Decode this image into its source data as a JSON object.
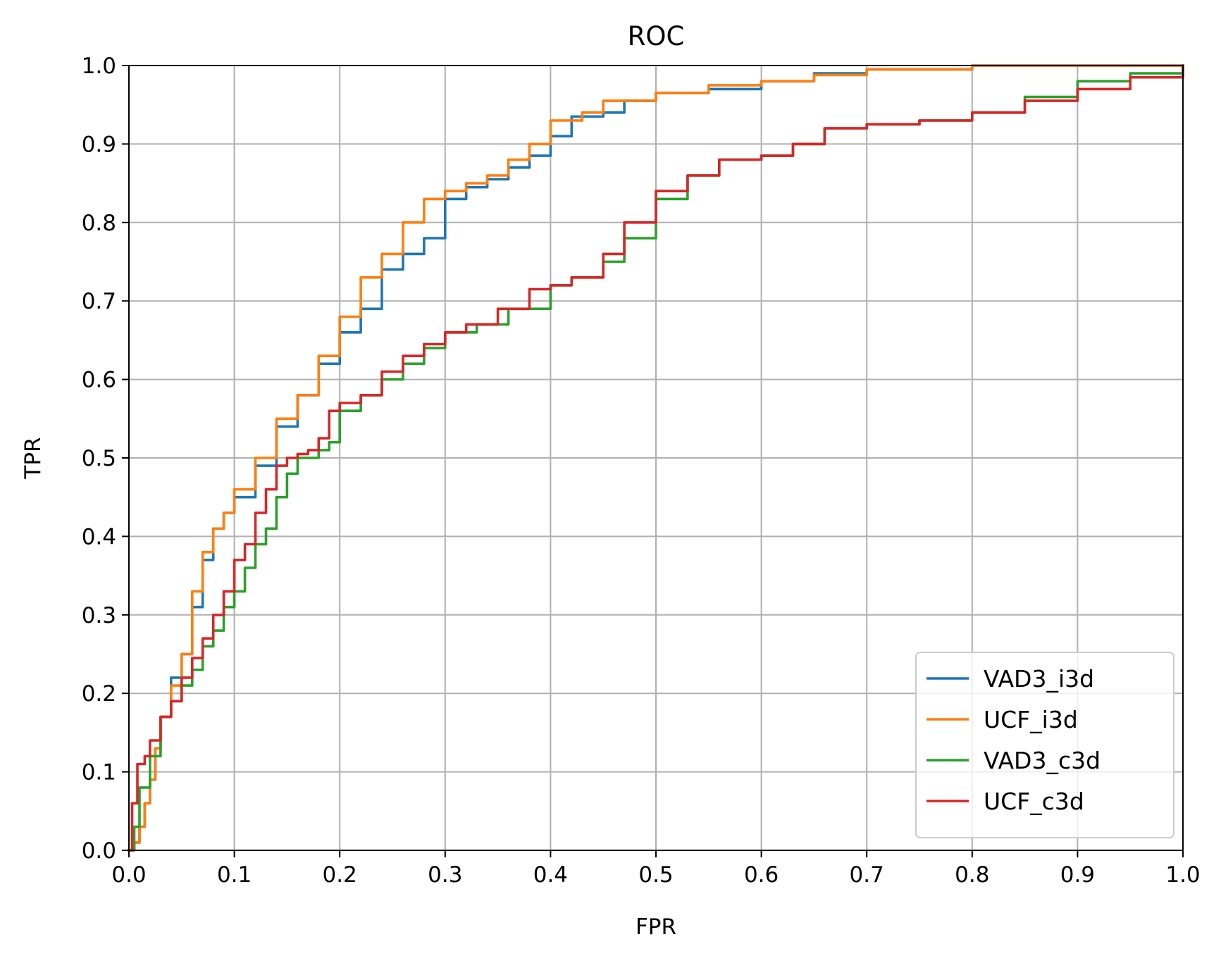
{
  "chart_data": {
    "type": "line",
    "title": "ROC",
    "xlabel": "FPR",
    "ylabel": "TPR",
    "xlim": [
      0,
      1
    ],
    "ylim": [
      0,
      1
    ],
    "grid": true,
    "legend_position": "lower-right",
    "xticks": [
      "0.0",
      "0.1",
      "0.2",
      "0.3",
      "0.4",
      "0.5",
      "0.6",
      "0.7",
      "0.8",
      "0.9",
      "1.0"
    ],
    "yticks": [
      "0.0",
      "0.1",
      "0.2",
      "0.3",
      "0.4",
      "0.5",
      "0.6",
      "0.7",
      "0.8",
      "0.9",
      "1.0"
    ],
    "series": [
      {
        "name": "VAD3_i3d",
        "color": "#1f77b4",
        "x": [
          0,
          0.005,
          0.01,
          0.015,
          0.02,
          0.025,
          0.03,
          0.04,
          0.05,
          0.06,
          0.07,
          0.08,
          0.09,
          0.1,
          0.12,
          0.14,
          0.16,
          0.18,
          0.2,
          0.22,
          0.24,
          0.26,
          0.28,
          0.3,
          0.32,
          0.34,
          0.36,
          0.38,
          0.4,
          0.42,
          0.45,
          0.47,
          0.5,
          0.55,
          0.6,
          0.65,
          0.7,
          0.8,
          0.9,
          1.0
        ],
        "y": [
          0,
          0.01,
          0.03,
          0.06,
          0.09,
          0.13,
          0.17,
          0.22,
          0.25,
          0.31,
          0.37,
          0.41,
          0.43,
          0.45,
          0.49,
          0.54,
          0.58,
          0.62,
          0.66,
          0.69,
          0.74,
          0.76,
          0.78,
          0.83,
          0.845,
          0.855,
          0.87,
          0.885,
          0.91,
          0.935,
          0.94,
          0.955,
          0.965,
          0.97,
          0.98,
          0.99,
          0.995,
          1.0,
          1.0,
          1.0
        ]
      },
      {
        "name": "UCF_i3d",
        "color": "#ff7f0e",
        "x": [
          0,
          0.005,
          0.01,
          0.015,
          0.02,
          0.025,
          0.03,
          0.04,
          0.05,
          0.06,
          0.07,
          0.08,
          0.09,
          0.1,
          0.12,
          0.14,
          0.16,
          0.18,
          0.2,
          0.22,
          0.24,
          0.26,
          0.28,
          0.3,
          0.32,
          0.34,
          0.36,
          0.38,
          0.4,
          0.43,
          0.45,
          0.5,
          0.55,
          0.6,
          0.65,
          0.7,
          0.8,
          0.9,
          1.0
        ],
        "y": [
          0,
          0.01,
          0.03,
          0.06,
          0.09,
          0.13,
          0.17,
          0.21,
          0.25,
          0.33,
          0.38,
          0.41,
          0.43,
          0.46,
          0.5,
          0.55,
          0.58,
          0.63,
          0.68,
          0.73,
          0.76,
          0.8,
          0.83,
          0.84,
          0.85,
          0.86,
          0.88,
          0.9,
          0.93,
          0.94,
          0.955,
          0.965,
          0.975,
          0.98,
          0.988,
          0.995,
          1.0,
          1.0,
          1.0
        ]
      },
      {
        "name": "VAD3_c3d",
        "color": "#2ca02c",
        "x": [
          0,
          0.005,
          0.01,
          0.02,
          0.03,
          0.04,
          0.05,
          0.06,
          0.07,
          0.08,
          0.09,
          0.1,
          0.11,
          0.12,
          0.13,
          0.14,
          0.15,
          0.16,
          0.18,
          0.19,
          0.2,
          0.22,
          0.24,
          0.26,
          0.28,
          0.3,
          0.33,
          0.36,
          0.4,
          0.42,
          0.45,
          0.47,
          0.5,
          0.53,
          0.56,
          0.6,
          0.63,
          0.66,
          0.7,
          0.75,
          0.8,
          0.85,
          0.9,
          0.95,
          1.0
        ],
        "y": [
          0,
          0.03,
          0.08,
          0.12,
          0.17,
          0.19,
          0.21,
          0.23,
          0.26,
          0.28,
          0.31,
          0.33,
          0.36,
          0.39,
          0.41,
          0.45,
          0.48,
          0.5,
          0.51,
          0.52,
          0.56,
          0.58,
          0.6,
          0.62,
          0.64,
          0.66,
          0.67,
          0.69,
          0.72,
          0.73,
          0.75,
          0.78,
          0.83,
          0.86,
          0.88,
          0.885,
          0.9,
          0.92,
          0.925,
          0.93,
          0.94,
          0.96,
          0.98,
          0.99,
          1.0
        ]
      },
      {
        "name": "UCF_c3d",
        "color": "#d62728",
        "x": [
          0,
          0.003,
          0.008,
          0.015,
          0.02,
          0.03,
          0.04,
          0.05,
          0.06,
          0.07,
          0.08,
          0.09,
          0.1,
          0.11,
          0.12,
          0.13,
          0.14,
          0.15,
          0.16,
          0.17,
          0.18,
          0.19,
          0.2,
          0.22,
          0.24,
          0.26,
          0.28,
          0.3,
          0.32,
          0.35,
          0.38,
          0.4,
          0.42,
          0.45,
          0.47,
          0.5,
          0.53,
          0.56,
          0.6,
          0.63,
          0.66,
          0.7,
          0.75,
          0.8,
          0.85,
          0.9,
          0.95,
          1.0
        ],
        "y": [
          0,
          0.06,
          0.11,
          0.12,
          0.14,
          0.17,
          0.19,
          0.22,
          0.245,
          0.27,
          0.3,
          0.33,
          0.37,
          0.39,
          0.43,
          0.46,
          0.49,
          0.5,
          0.505,
          0.51,
          0.525,
          0.56,
          0.57,
          0.58,
          0.61,
          0.63,
          0.645,
          0.66,
          0.67,
          0.69,
          0.715,
          0.72,
          0.73,
          0.76,
          0.8,
          0.84,
          0.86,
          0.88,
          0.885,
          0.9,
          0.92,
          0.925,
          0.93,
          0.94,
          0.955,
          0.97,
          0.985,
          1.0
        ]
      }
    ]
  }
}
